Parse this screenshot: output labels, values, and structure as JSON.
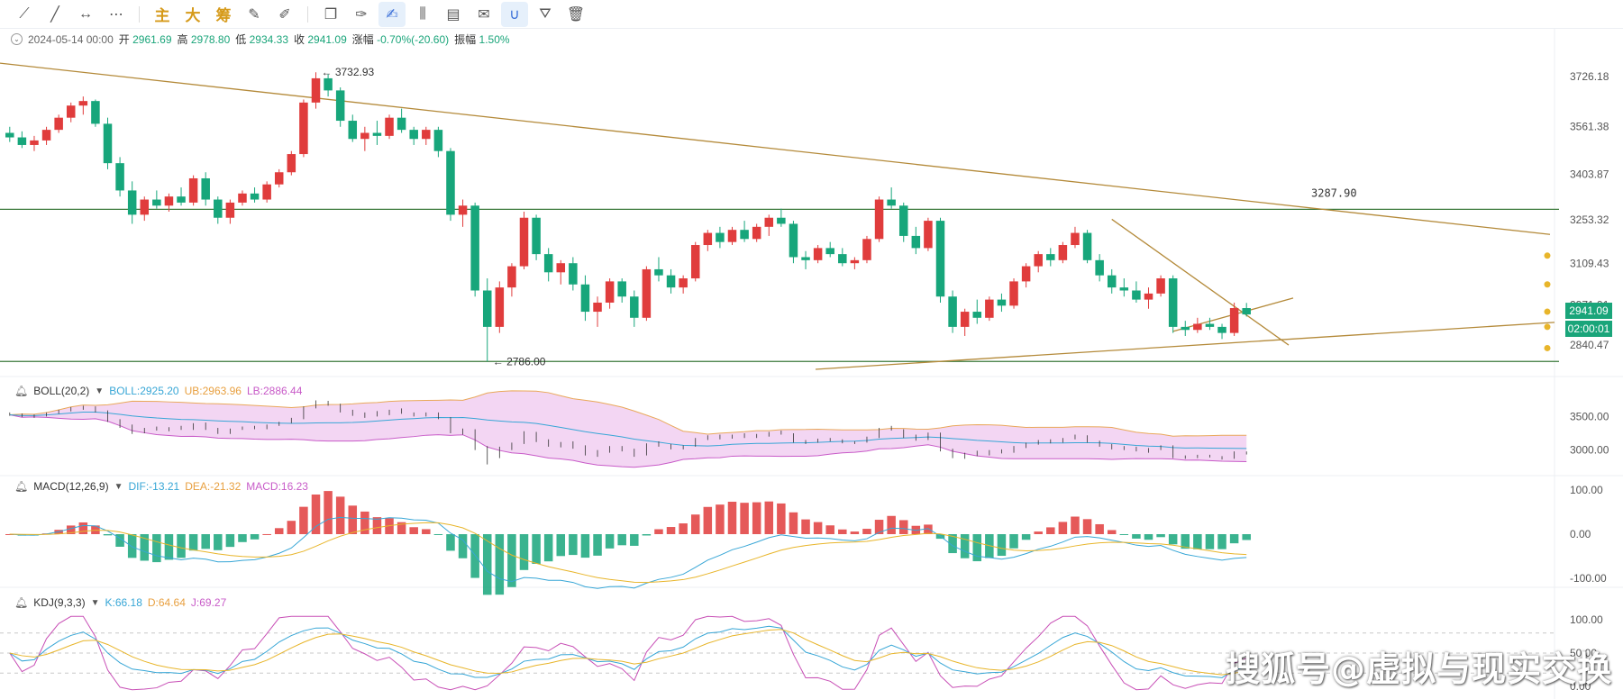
{
  "toolbar": {
    "tools": [
      {
        "name": "trend-line-icon",
        "glyph": "⟋"
      },
      {
        "name": "ray-icon",
        "glyph": "╱"
      },
      {
        "name": "horizontal-measure-icon",
        "glyph": "↔"
      },
      {
        "name": "more-icon",
        "glyph": "⋯"
      }
    ],
    "cn_buttons": [
      "主",
      "大",
      "筹"
    ],
    "tools2": [
      {
        "name": "edit-icon",
        "glyph": "✎"
      },
      {
        "name": "brush-icon",
        "glyph": "✐"
      },
      {
        "name": "copy-icon",
        "glyph": "❐"
      },
      {
        "name": "pen-icon",
        "glyph": "✑"
      },
      {
        "name": "highlighter-icon",
        "glyph": "✍"
      },
      {
        "name": "candles-icon",
        "glyph": "⫼"
      },
      {
        "name": "clipboard-icon",
        "glyph": "▤"
      },
      {
        "name": "note-icon",
        "glyph": "✉"
      },
      {
        "name": "magnet-icon",
        "glyph": "∪"
      },
      {
        "name": "filter-icon",
        "glyph": "⛛"
      },
      {
        "name": "trash-icon",
        "glyph": "🗑"
      }
    ]
  },
  "ohlc": {
    "date": "2024-05-14 00:00",
    "open_label": "开",
    "open": "2961.69",
    "high_label": "高",
    "high": "2978.80",
    "low_label": "低",
    "low": "2934.33",
    "close_label": "收",
    "close": "2941.09",
    "change_label": "涨幅",
    "change": "-0.70%(-20.60)",
    "amp_label": "振幅",
    "amp": "1.50%"
  },
  "boll": {
    "name": "BOLL(20,2)",
    "mid": "BOLL:2925.20",
    "ub": "UB:2963.96",
    "lb": "LB:2886.44"
  },
  "macd": {
    "name": "MACD(12,26,9)",
    "dif": "DIF:-13.21",
    "dea": "DEA:-21.32",
    "macd": "MACD:16.23"
  },
  "kdj": {
    "name": "KDJ(9,3,3)",
    "k": "K:66.18",
    "d": "D:64.64",
    "j": "J:69.27"
  },
  "annotations": {
    "high": "3732.93",
    "low": "2786.00",
    "level": "3287.90"
  },
  "current": {
    "price": "2941.09",
    "countdown": "02:00:01"
  },
  "watermark": "搜狐号@虚拟与现实交换",
  "colors": {
    "up": "#e03c3c",
    "down": "#17a67b",
    "trend": "#b48a3a",
    "hline": "#3b7a3b",
    "boll": "#9f8cd8",
    "ub": "#e9a85a",
    "lb": "#c85bc8",
    "dif": "#37a6d6",
    "dea": "#e8b52a",
    "j": "#c84fb6"
  },
  "chart_data": [
    {
      "type": "candlestick",
      "title": "",
      "y_ticks": [
        3726.18,
        3561.38,
        3403.87,
        3253.32,
        3109.43,
        2971.91,
        2840.47
      ],
      "ylim": [
        2760,
        3800
      ],
      "horizontal_levels": [
        3287.9,
        2786.0
      ],
      "ohlc_series": [
        [
          3540,
          3560,
          3510,
          3525
        ],
        [
          3525,
          3545,
          3490,
          3500
        ],
        [
          3500,
          3530,
          3480,
          3515
        ],
        [
          3515,
          3560,
          3500,
          3550
        ],
        [
          3550,
          3600,
          3540,
          3590
        ],
        [
          3590,
          3640,
          3575,
          3630
        ],
        [
          3630,
          3660,
          3600,
          3645
        ],
        [
          3645,
          3650,
          3560,
          3570
        ],
        [
          3570,
          3590,
          3420,
          3440
        ],
        [
          3440,
          3460,
          3330,
          3350
        ],
        [
          3350,
          3380,
          3240,
          3270
        ],
        [
          3270,
          3330,
          3250,
          3320
        ],
        [
          3320,
          3350,
          3290,
          3300
        ],
        [
          3300,
          3340,
          3280,
          3330
        ],
        [
          3330,
          3360,
          3300,
          3310
        ],
        [
          3310,
          3400,
          3300,
          3390
        ],
        [
          3390,
          3410,
          3300,
          3320
        ],
        [
          3320,
          3330,
          3240,
          3260
        ],
        [
          3260,
          3320,
          3240,
          3310
        ],
        [
          3310,
          3350,
          3300,
          3340
        ],
        [
          3340,
          3360,
          3310,
          3320
        ],
        [
          3320,
          3380,
          3310,
          3370
        ],
        [
          3370,
          3420,
          3360,
          3410
        ],
        [
          3410,
          3480,
          3400,
          3470
        ],
        [
          3470,
          3650,
          3460,
          3640
        ],
        [
          3640,
          3740,
          3620,
          3720
        ],
        [
          3720,
          3733,
          3660,
          3680
        ],
        [
          3680,
          3690,
          3560,
          3580
        ],
        [
          3580,
          3600,
          3510,
          3520
        ],
        [
          3520,
          3560,
          3480,
          3540
        ],
        [
          3540,
          3580,
          3500,
          3530
        ],
        [
          3530,
          3600,
          3520,
          3590
        ],
        [
          3590,
          3620,
          3540,
          3550
        ],
        [
          3550,
          3560,
          3500,
          3520
        ],
        [
          3520,
          3560,
          3500,
          3550
        ],
        [
          3550,
          3560,
          3460,
          3480
        ],
        [
          3480,
          3490,
          3250,
          3270
        ],
        [
          3270,
          3320,
          3230,
          3300
        ],
        [
          3300,
          3310,
          3000,
          3020
        ],
        [
          3020,
          3060,
          2786,
          2900
        ],
        [
          2900,
          3050,
          2880,
          3030
        ],
        [
          3030,
          3110,
          3000,
          3100
        ],
        [
          3100,
          3280,
          3090,
          3260
        ],
        [
          3260,
          3270,
          3120,
          3140
        ],
        [
          3140,
          3160,
          3050,
          3080
        ],
        [
          3080,
          3120,
          3040,
          3110
        ],
        [
          3110,
          3130,
          3020,
          3040
        ],
        [
          3040,
          3070,
          2920,
          2950
        ],
        [
          2950,
          3000,
          2900,
          2980
        ],
        [
          2980,
          3060,
          2960,
          3050
        ],
        [
          3050,
          3060,
          2980,
          3000
        ],
        [
          3000,
          3020,
          2900,
          2930
        ],
        [
          2930,
          3100,
          2920,
          3090
        ],
        [
          3090,
          3130,
          3050,
          3070
        ],
        [
          3070,
          3090,
          3010,
          3030
        ],
        [
          3030,
          3070,
          3010,
          3060
        ],
        [
          3060,
          3180,
          3050,
          3170
        ],
        [
          3170,
          3220,
          3150,
          3210
        ],
        [
          3210,
          3230,
          3160,
          3180
        ],
        [
          3180,
          3230,
          3170,
          3220
        ],
        [
          3220,
          3250,
          3180,
          3190
        ],
        [
          3190,
          3240,
          3180,
          3230
        ],
        [
          3230,
          3270,
          3200,
          3260
        ],
        [
          3260,
          3290,
          3230,
          3240
        ],
        [
          3240,
          3250,
          3110,
          3130
        ],
        [
          3130,
          3150,
          3090,
          3120
        ],
        [
          3120,
          3170,
          3110,
          3160
        ],
        [
          3160,
          3180,
          3130,
          3140
        ],
        [
          3140,
          3160,
          3100,
          3110
        ],
        [
          3110,
          3130,
          3090,
          3120
        ],
        [
          3120,
          3200,
          3110,
          3190
        ],
        [
          3190,
          3330,
          3180,
          3320
        ],
        [
          3320,
          3360,
          3290,
          3300
        ],
        [
          3300,
          3310,
          3180,
          3200
        ],
        [
          3200,
          3230,
          3140,
          3160
        ],
        [
          3160,
          3260,
          3150,
          3250
        ],
        [
          3250,
          3260,
          2980,
          3000
        ],
        [
          3000,
          3020,
          2880,
          2900
        ],
        [
          2900,
          2960,
          2870,
          2950
        ],
        [
          2950,
          2990,
          2910,
          2930
        ],
        [
          2930,
          3000,
          2920,
          2990
        ],
        [
          2990,
          3010,
          2950,
          2970
        ],
        [
          2970,
          3060,
          2960,
          3050
        ],
        [
          3050,
          3110,
          3030,
          3100
        ],
        [
          3100,
          3150,
          3080,
          3140
        ],
        [
          3140,
          3160,
          3100,
          3120
        ],
        [
          3120,
          3180,
          3110,
          3170
        ],
        [
          3170,
          3230,
          3160,
          3210
        ],
        [
          3210,
          3220,
          3110,
          3120
        ],
        [
          3120,
          3140,
          3050,
          3070
        ],
        [
          3070,
          3090,
          3010,
          3030
        ],
        [
          3030,
          3060,
          3000,
          3020
        ],
        [
          3020,
          3050,
          2980,
          2990
        ],
        [
          2990,
          3030,
          2960,
          3010
        ],
        [
          3010,
          3070,
          3000,
          3060
        ],
        [
          3060,
          3070,
          2880,
          2900
        ],
        [
          2900,
          2920,
          2870,
          2890
        ],
        [
          2890,
          2930,
          2880,
          2910
        ],
        [
          2910,
          2930,
          2890,
          2900
        ],
        [
          2900,
          2910,
          2860,
          2880
        ],
        [
          2880,
          2980,
          2870,
          2962
        ],
        [
          2962,
          2979,
          2934,
          2941
        ]
      ]
    },
    {
      "type": "line",
      "title": "BOLL(20,2)",
      "y_ticks": [
        3500.0,
        3000.0
      ],
      "series": [
        {
          "name": "BOLL",
          "value": 2925.2
        },
        {
          "name": "UB",
          "value": 2963.96
        },
        {
          "name": "LB",
          "value": 2886.44
        }
      ]
    },
    {
      "type": "bar",
      "title": "MACD(12,26,9)",
      "y_ticks": [
        100.0,
        0.0,
        -100.0
      ],
      "series": [
        {
          "name": "DIF",
          "value": -13.21
        },
        {
          "name": "DEA",
          "value": -21.32
        },
        {
          "name": "MACD",
          "value": 16.23
        }
      ]
    },
    {
      "type": "line",
      "title": "KDJ(9,3,3)",
      "y_ticks": [
        100.0,
        50.0,
        0.0
      ],
      "series": [
        {
          "name": "K",
          "value": 66.18
        },
        {
          "name": "D",
          "value": 64.64
        },
        {
          "name": "J",
          "value": 69.27
        }
      ]
    }
  ]
}
